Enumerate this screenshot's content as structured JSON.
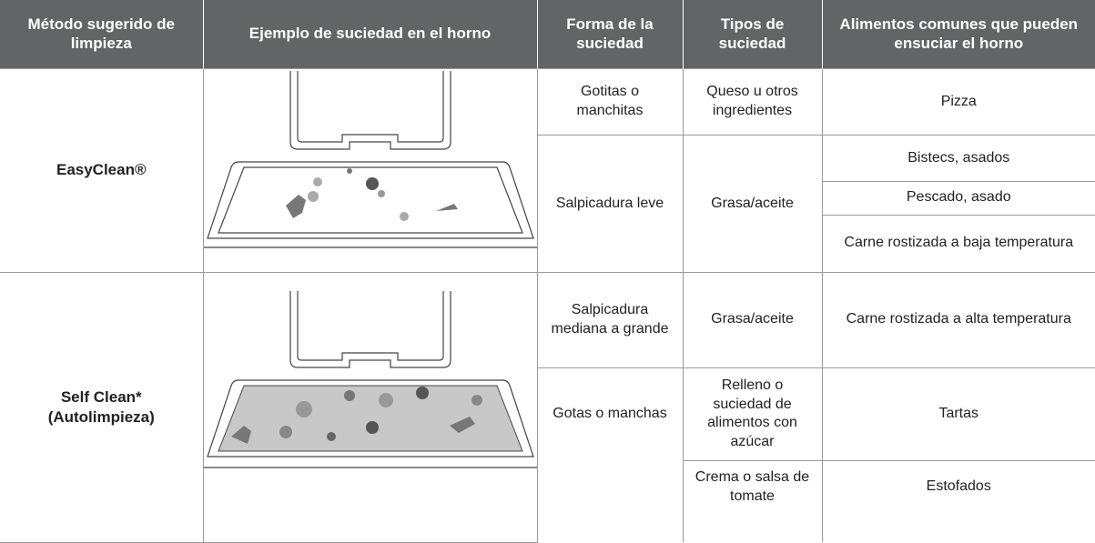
{
  "table": {
    "header": [
      "Método sugerido de limpieza",
      "Ejemplo de suciedad en el horno",
      "Forma de la suciedad",
      "Tipos de suciedad",
      "Alimentos comunes que pueden ensuciar el horno"
    ],
    "rows": [
      [
        "EasyClean®",
        "Gotitas o manchitas",
        "Queso u otros ingredientes",
        "Pizza"
      ],
      [
        "Salpicadura leve",
        "Grasa/aceite",
        "Bistecs, asados"
      ],
      [
        "Pescado, asado"
      ],
      [
        "Carne rostizada a baja temperatura"
      ],
      [
        "Self Clean* (Autolimpieza)",
        "Salpicadura mediana a grande",
        "Grasa/aceite",
        "Carne rostizada a alta temperatura"
      ],
      [
        "Gotas o manchas",
        "Relleno o suciedad de alimentos con azúcar",
        "Tartas"
      ],
      [
        "Crema o salsa de tomate",
        "Estofados"
      ]
    ]
  }
}
